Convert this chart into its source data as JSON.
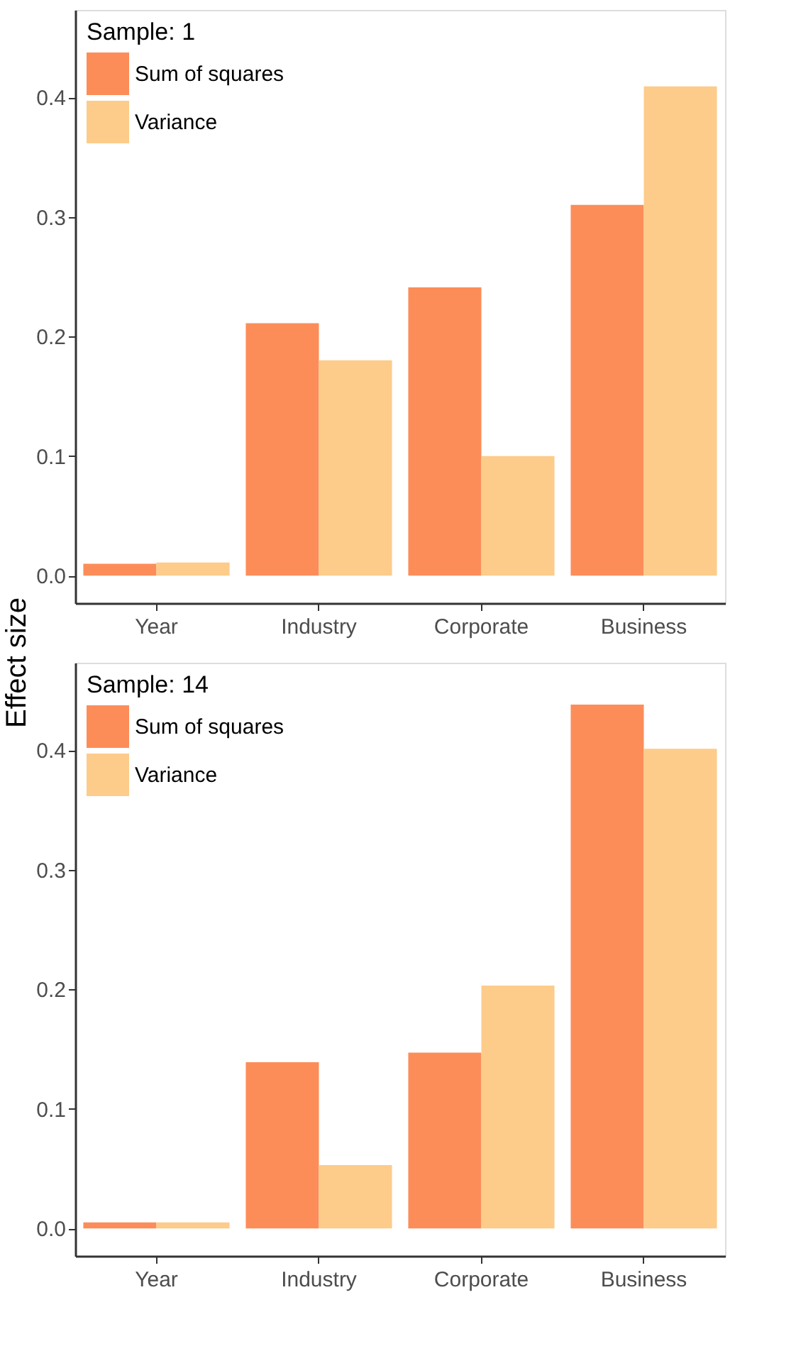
{
  "chart_data": [
    {
      "type": "bar",
      "legend_title": "Sample: 1",
      "ylabel": "Effect size",
      "categories": [
        "Year",
        "Industry",
        "Corporate",
        "Business"
      ],
      "series": [
        {
          "name": "Sum of squares",
          "color": "#fc8d59",
          "values": [
            0.01,
            0.211,
            0.241,
            0.31
          ]
        },
        {
          "name": "Variance",
          "color": "#fdcc8a",
          "values": [
            0.011,
            0.18,
            0.1,
            0.409
          ]
        }
      ],
      "ylim": [
        -0.023,
        0.473
      ],
      "yticks": [
        {
          "value": 0,
          "label": "0.0"
        },
        0.1,
        0.2,
        0.3,
        0.4
      ],
      "grid": false,
      "legend": "top left"
    },
    {
      "type": "bar",
      "legend_title": "Sample: 14",
      "categories": [
        "Year",
        "Industry",
        "Corporate",
        "Business"
      ],
      "series": [
        {
          "name": "Sum of squares",
          "color": "#fc8d59",
          "values": [
            0.005,
            0.139,
            0.147,
            0.438
          ]
        },
        {
          "name": "Variance",
          "color": "#fdcc8a",
          "values": [
            0.005,
            0.053,
            0.203,
            0.401
          ]
        }
      ],
      "ylim": [
        -0.023,
        0.473
      ],
      "yticks": [
        {
          "value": 0,
          "label": "0.0"
        },
        0.1,
        0.2,
        0.3,
        0.4
      ],
      "grid": false,
      "legend": "top left"
    }
  ]
}
